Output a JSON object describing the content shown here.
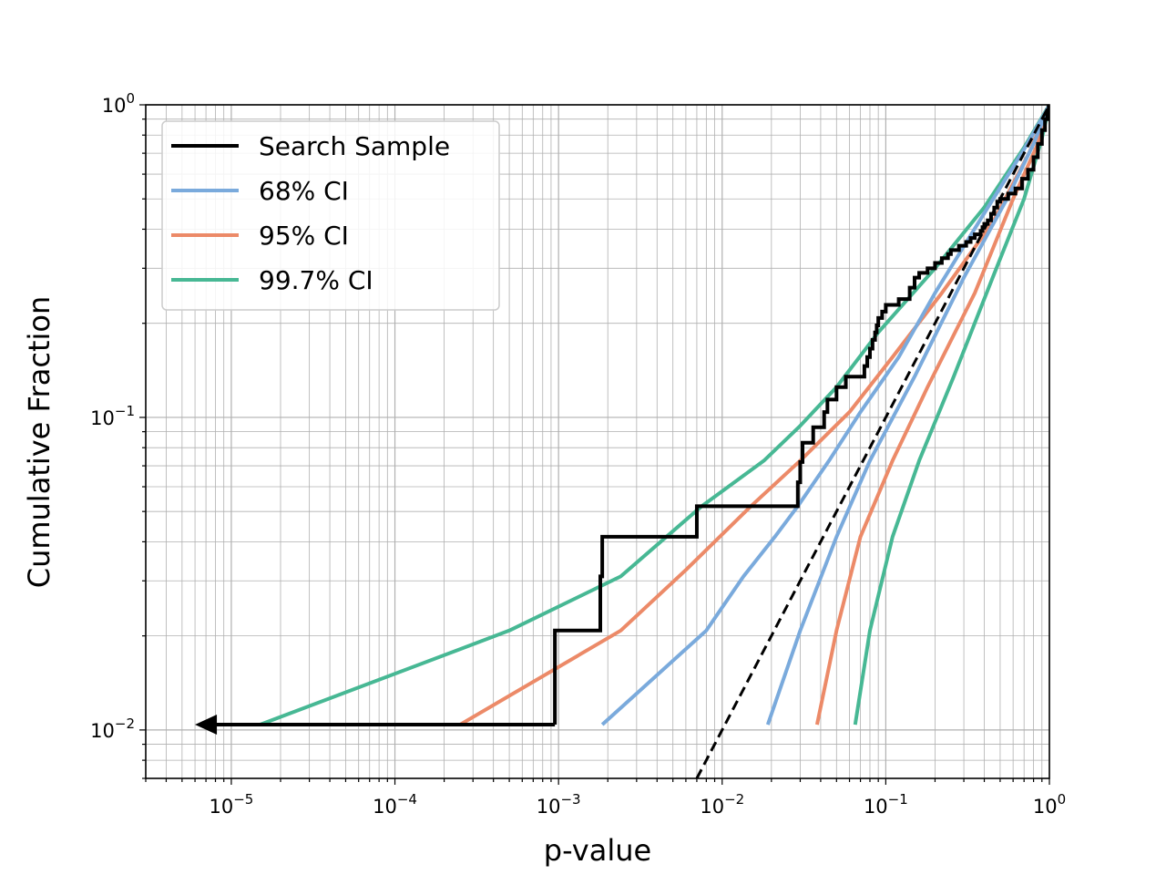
{
  "chart_data": {
    "type": "line",
    "xlabel": "p-value",
    "ylabel": "Cumulative Fraction",
    "xscale": "log",
    "yscale": "log",
    "xlim": [
      3e-06,
      1
    ],
    "ylim": [
      0.007,
      1
    ],
    "x_ticks": [
      {
        "base": "10",
        "exp": "−5",
        "value": 1e-05
      },
      {
        "base": "10",
        "exp": "−4",
        "value": 0.0001
      },
      {
        "base": "10",
        "exp": "−3",
        "value": 0.001
      },
      {
        "base": "10",
        "exp": "−2",
        "value": 0.01
      },
      {
        "base": "10",
        "exp": "−1",
        "value": 0.1
      },
      {
        "base": "10",
        "exp": "0",
        "value": 1
      }
    ],
    "y_ticks": [
      {
        "base": "10",
        "exp": "−2",
        "value": 0.01
      },
      {
        "base": "10",
        "exp": "−1",
        "value": 0.1
      },
      {
        "base": "10",
        "exp": "0",
        "value": 1
      }
    ],
    "grid": true,
    "legend_position": "top-left",
    "legend": [
      {
        "label": "Search Sample",
        "color": "#000000"
      },
      {
        "label": "68% CI",
        "color": "#7aaadc"
      },
      {
        "label": "95% CI",
        "color": "#ec8a68"
      },
      {
        "label": "99.7% CI",
        "color": "#47b894"
      }
    ],
    "series": [
      {
        "name": "Search Sample",
        "color": "#000000",
        "style": "step",
        "arrow": {
          "from": [
            0.00095,
            0.0104
          ],
          "to": [
            6e-06,
            0.0104
          ]
        },
        "points": [
          [
            0.00095,
            0.0104
          ],
          [
            0.00095,
            0.0208
          ],
          [
            0.0018,
            0.0208
          ],
          [
            0.0018,
            0.031
          ],
          [
            0.00185,
            0.031
          ],
          [
            0.00185,
            0.0415
          ],
          [
            0.007,
            0.0415
          ],
          [
            0.007,
            0.052
          ],
          [
            0.029,
            0.052
          ],
          [
            0.029,
            0.062
          ],
          [
            0.03,
            0.062
          ],
          [
            0.03,
            0.072
          ],
          [
            0.031,
            0.072
          ],
          [
            0.031,
            0.083
          ],
          [
            0.036,
            0.083
          ],
          [
            0.036,
            0.093
          ],
          [
            0.042,
            0.093
          ],
          [
            0.042,
            0.104
          ],
          [
            0.044,
            0.104
          ],
          [
            0.044,
            0.114
          ],
          [
            0.05,
            0.114
          ],
          [
            0.05,
            0.125
          ],
          [
            0.057,
            0.125
          ],
          [
            0.057,
            0.135
          ],
          [
            0.074,
            0.135
          ],
          [
            0.074,
            0.146
          ],
          [
            0.077,
            0.146
          ],
          [
            0.077,
            0.156
          ],
          [
            0.08,
            0.156
          ],
          [
            0.08,
            0.166
          ],
          [
            0.083,
            0.166
          ],
          [
            0.083,
            0.177
          ],
          [
            0.086,
            0.177
          ],
          [
            0.086,
            0.187
          ],
          [
            0.088,
            0.187
          ],
          [
            0.088,
            0.197
          ],
          [
            0.09,
            0.197
          ],
          [
            0.09,
            0.208
          ],
          [
            0.095,
            0.208
          ],
          [
            0.095,
            0.218
          ],
          [
            0.1,
            0.218
          ],
          [
            0.1,
            0.229
          ],
          [
            0.12,
            0.229
          ],
          [
            0.12,
            0.239
          ],
          [
            0.14,
            0.239
          ],
          [
            0.14,
            0.26
          ],
          [
            0.15,
            0.26
          ],
          [
            0.15,
            0.28
          ],
          [
            0.16,
            0.28
          ],
          [
            0.16,
            0.29
          ],
          [
            0.18,
            0.29
          ],
          [
            0.18,
            0.3
          ],
          [
            0.2,
            0.3
          ],
          [
            0.2,
            0.312
          ],
          [
            0.22,
            0.312
          ],
          [
            0.22,
            0.323
          ],
          [
            0.24,
            0.323
          ],
          [
            0.24,
            0.333
          ],
          [
            0.25,
            0.333
          ],
          [
            0.25,
            0.343
          ],
          [
            0.28,
            0.343
          ],
          [
            0.28,
            0.354
          ],
          [
            0.31,
            0.354
          ],
          [
            0.31,
            0.364
          ],
          [
            0.33,
            0.364
          ],
          [
            0.33,
            0.375
          ],
          [
            0.35,
            0.375
          ],
          [
            0.35,
            0.385
          ],
          [
            0.38,
            0.385
          ],
          [
            0.38,
            0.395
          ],
          [
            0.39,
            0.395
          ],
          [
            0.39,
            0.406
          ],
          [
            0.4,
            0.406
          ],
          [
            0.4,
            0.416
          ],
          [
            0.42,
            0.416
          ],
          [
            0.42,
            0.427
          ],
          [
            0.44,
            0.427
          ],
          [
            0.44,
            0.448
          ],
          [
            0.46,
            0.448
          ],
          [
            0.46,
            0.469
          ],
          [
            0.48,
            0.469
          ],
          [
            0.48,
            0.49
          ],
          [
            0.5,
            0.49
          ],
          [
            0.5,
            0.5
          ],
          [
            0.56,
            0.5
          ],
          [
            0.56,
            0.52
          ],
          [
            0.62,
            0.52
          ],
          [
            0.62,
            0.54
          ],
          [
            0.68,
            0.54
          ],
          [
            0.68,
            0.58
          ],
          [
            0.74,
            0.58
          ],
          [
            0.74,
            0.62
          ],
          [
            0.8,
            0.62
          ],
          [
            0.8,
            0.68
          ],
          [
            0.85,
            0.68
          ],
          [
            0.85,
            0.75
          ],
          [
            0.9,
            0.75
          ],
          [
            0.9,
            0.83
          ],
          [
            0.94,
            0.83
          ],
          [
            0.94,
            0.9
          ],
          [
            0.97,
            0.9
          ],
          [
            0.97,
            0.96
          ],
          [
            0.99,
            0.96
          ],
          [
            0.99,
            1.0
          ]
        ]
      },
      {
        "name": "68% CI",
        "color": "#7aaadc",
        "lower": [
          [
            0.00185,
            0.0104
          ],
          [
            0.008,
            0.0208
          ],
          [
            0.0135,
            0.031
          ],
          [
            0.021,
            0.0415
          ],
          [
            0.029,
            0.052
          ],
          [
            0.045,
            0.0727
          ],
          [
            0.07,
            0.104
          ],
          [
            0.12,
            0.156
          ],
          [
            0.2,
            0.25
          ],
          [
            0.4,
            0.45
          ],
          [
            0.7,
            0.72
          ],
          [
            0.95,
            0.95
          ],
          [
            1.0,
            1.0
          ]
        ],
        "upper": [
          [
            0.019,
            0.0104
          ],
          [
            0.03,
            0.0208
          ],
          [
            0.05,
            0.0415
          ],
          [
            0.08,
            0.0727
          ],
          [
            0.15,
            0.135
          ],
          [
            0.3,
            0.28
          ],
          [
            0.55,
            0.5
          ],
          [
            0.8,
            0.75
          ],
          [
            1.0,
            1.0
          ]
        ]
      },
      {
        "name": "95% CI",
        "color": "#ec8a68",
        "lower": [
          [
            0.00025,
            0.0104
          ],
          [
            0.0024,
            0.0208
          ],
          [
            0.006,
            0.0325
          ],
          [
            0.015,
            0.052
          ],
          [
            0.03,
            0.0727
          ],
          [
            0.06,
            0.104
          ],
          [
            0.11,
            0.156
          ],
          [
            0.22,
            0.25
          ],
          [
            0.45,
            0.42
          ],
          [
            0.75,
            0.7
          ],
          [
            1.0,
            1.0
          ]
        ],
        "upper": [
          [
            0.038,
            0.0104
          ],
          [
            0.05,
            0.0208
          ],
          [
            0.07,
            0.0415
          ],
          [
            0.11,
            0.0727
          ],
          [
            0.18,
            0.125
          ],
          [
            0.35,
            0.25
          ],
          [
            0.6,
            0.5
          ],
          [
            0.85,
            0.75
          ],
          [
            1.0,
            1.0
          ]
        ]
      },
      {
        "name": "99.7% CI",
        "color": "#47b894",
        "lower": [
          [
            1.5e-05,
            0.0104
          ],
          [
            0.0005,
            0.0208
          ],
          [
            0.0024,
            0.031
          ],
          [
            0.0075,
            0.052
          ],
          [
            0.018,
            0.0727
          ],
          [
            0.03,
            0.094
          ],
          [
            0.05,
            0.125
          ],
          [
            0.09,
            0.187
          ],
          [
            0.2,
            0.3
          ],
          [
            0.4,
            0.47
          ],
          [
            0.7,
            0.73
          ],
          [
            1.0,
            1.0
          ]
        ],
        "upper": [
          [
            0.065,
            0.0104
          ],
          [
            0.08,
            0.0208
          ],
          [
            0.11,
            0.0415
          ],
          [
            0.16,
            0.0727
          ],
          [
            0.26,
            0.135
          ],
          [
            0.45,
            0.28
          ],
          [
            0.7,
            0.5
          ],
          [
            0.9,
            0.78
          ],
          [
            1.0,
            1.0
          ]
        ]
      },
      {
        "name": "reference",
        "color": "#000000",
        "style": "dashed",
        "points": [
          [
            0.007,
            0.007
          ],
          [
            1.0,
            1.0
          ]
        ]
      }
    ]
  }
}
